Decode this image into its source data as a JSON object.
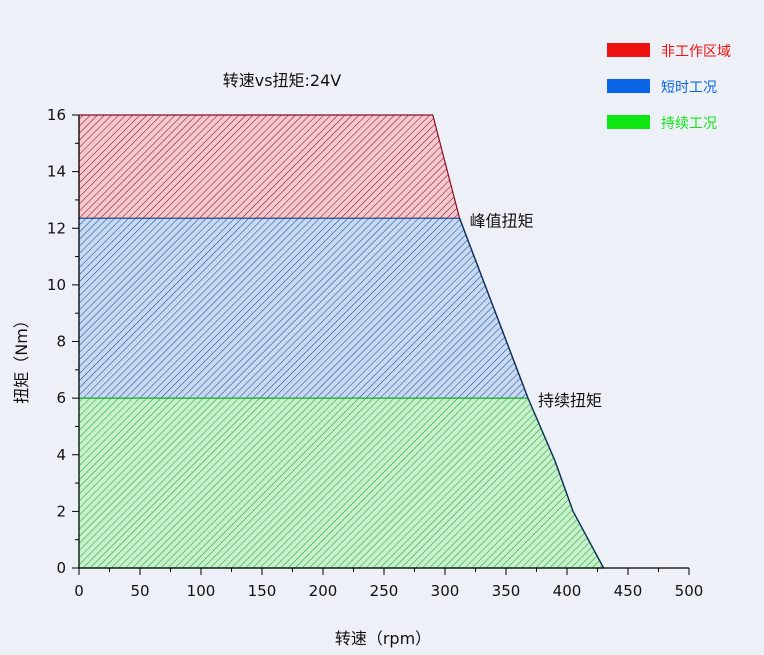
{
  "chart_data": {
    "type": "area",
    "title": "转速vs扭矩:24V",
    "xlabel": "转速（rpm）",
    "ylabel": "扭矩（Nm）",
    "xlim": [
      0,
      500
    ],
    "ylim": [
      0,
      16
    ],
    "x_ticks": [
      0,
      50,
      100,
      150,
      200,
      250,
      300,
      350,
      400,
      450,
      500
    ],
    "y_ticks": [
      0,
      2,
      4,
      6,
      8,
      10,
      12,
      14,
      16
    ],
    "grid": false,
    "legend_position": "top-right",
    "legend": [
      {
        "label": "非工作区域",
        "color": "#ee1111"
      },
      {
        "label": "短时工况",
        "color": "#0a64e6"
      },
      {
        "label": "持续工况",
        "color": "#0ee614"
      }
    ],
    "regions": [
      {
        "name": "非工作区域",
        "color": "#8b0f23",
        "hatch": "#8b0f23",
        "fill": "#f3c9cf",
        "points": [
          [
            0,
            12.35
          ],
          [
            312,
            12.35
          ],
          [
            290,
            16
          ],
          [
            0,
            16
          ]
        ]
      },
      {
        "name": "短时工况",
        "color": "#1a4f9c",
        "hatch": "#1a4f9c",
        "fill": "#c9daf0",
        "points": [
          [
            0,
            6
          ],
          [
            368,
            6
          ],
          [
            312,
            12.35
          ],
          [
            0,
            12.35
          ]
        ]
      },
      {
        "name": "持续工况",
        "color": "#18a82c",
        "hatch": "#18a82c",
        "fill": "#c8f0cc",
        "points": [
          [
            0,
            0
          ],
          [
            430,
            0
          ],
          [
            405,
            2
          ],
          [
            390,
            3.8
          ],
          [
            368,
            6
          ],
          [
            0,
            6
          ]
        ]
      }
    ],
    "boundary_curve": [
      [
        312,
        12.35
      ],
      [
        368,
        6
      ],
      [
        390,
        3.8
      ],
      [
        405,
        2
      ],
      [
        430,
        0
      ]
    ],
    "annotations": [
      {
        "text": "峰值扭矩",
        "x": 312,
        "y": 12.35
      },
      {
        "text": "持续扭矩",
        "x": 368,
        "y": 6
      }
    ]
  }
}
